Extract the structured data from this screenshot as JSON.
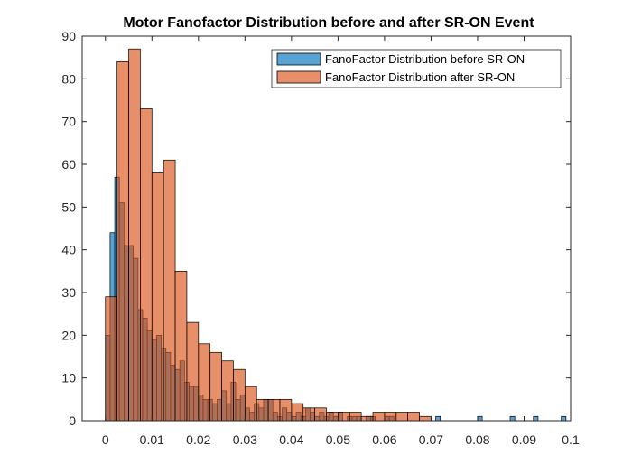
{
  "chart_data": {
    "type": "histogram",
    "title": "Motor Fanofactor Distribution before and after SR-ON Event",
    "xlabel": "",
    "ylabel": "",
    "xlim": [
      -0.005,
      0.1
    ],
    "ylim": [
      0,
      90
    ],
    "xticks": [
      0,
      0.01,
      0.02,
      0.03,
      0.04,
      0.05,
      0.06,
      0.07,
      0.08,
      0.09,
      0.1
    ],
    "xtick_labels": [
      "0",
      "0.01",
      "0.02",
      "0.03",
      "0.04",
      "0.05",
      "0.06",
      "0.07",
      "0.08",
      "0.09",
      "0.1"
    ],
    "yticks": [
      0,
      10,
      20,
      30,
      40,
      50,
      60,
      70,
      80,
      90
    ],
    "ytick_labels": [
      "0",
      "10",
      "20",
      "30",
      "40",
      "50",
      "60",
      "70",
      "80",
      "90"
    ],
    "grid": false,
    "legend_position": "top-right",
    "series": [
      {
        "name": "FanoFactor Distribution before SR-ON",
        "color": "#0072BD",
        "bin_width": 0.001,
        "bin_start": 0,
        "counts": [
          20,
          44,
          57,
          51,
          41,
          41,
          38,
          26,
          24,
          21,
          19,
          20,
          17,
          16,
          13,
          12,
          14,
          9,
          8,
          8,
          6,
          5,
          5,
          4,
          5,
          7,
          4,
          9,
          5,
          6,
          3,
          2,
          4,
          3,
          5,
          5,
          2,
          1,
          3,
          2,
          1,
          2,
          1,
          3,
          2,
          1,
          2,
          1,
          2,
          1,
          2,
          0,
          1,
          1,
          1,
          0,
          1,
          1,
          0,
          0,
          1,
          1,
          0,
          0,
          0,
          0,
          0,
          0,
          0,
          0,
          0,
          1,
          0,
          0,
          0,
          0,
          0,
          0,
          0,
          0,
          1,
          0,
          0,
          0,
          0,
          0,
          0,
          1,
          0,
          0,
          0,
          0,
          1,
          0,
          0,
          0,
          0,
          0,
          1
        ]
      },
      {
        "name": "FanoFactor Distribution after SR-ON",
        "color": "#D95319",
        "bin_width": 0.0025,
        "bin_start": 0,
        "counts": [
          29,
          84,
          87,
          73,
          58,
          61,
          35,
          23,
          18,
          16,
          14,
          12,
          8,
          5,
          5,
          5,
          4,
          3,
          3,
          2,
          2,
          2,
          1,
          2,
          2,
          2,
          2,
          1,
          0,
          0,
          0,
          0,
          0,
          0,
          0,
          0,
          0,
          0,
          0,
          0,
          0,
          0,
          0,
          0,
          0
        ]
      }
    ]
  }
}
